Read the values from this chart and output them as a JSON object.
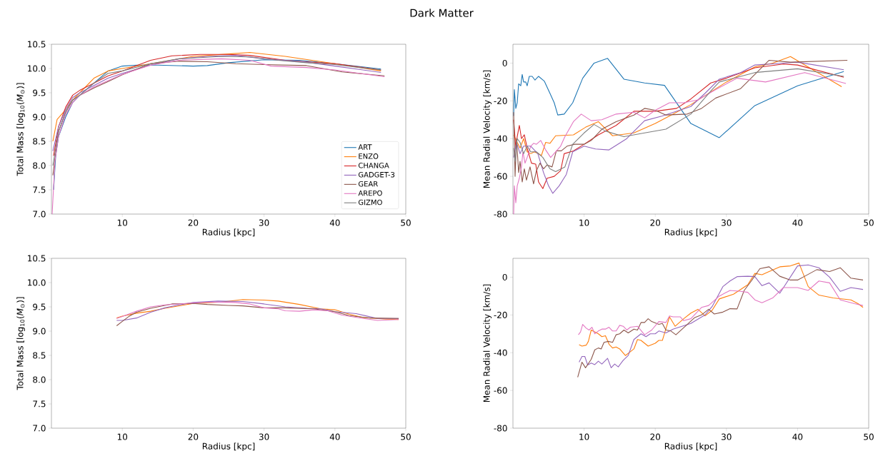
{
  "chart_data": [
    {
      "type": "line",
      "title": "Dark Matter",
      "xlabel": "Radius [kpc]",
      "ylabel": "Total Mass [log$_{10}$(*M*$_{⊙}$)]",
      "xlim": [
        0,
        50
      ],
      "ylim": [
        7,
        10.5
      ],
      "xticks": [
        10,
        20,
        30,
        40,
        50
      ],
      "yticks": [
        {
          "value": 7,
          "label": "7.0"
        },
        {
          "value": 7.5,
          "label": "7.5"
        },
        {
          "value": 8,
          "label": "8.0"
        },
        {
          "value": 8.5,
          "label": "8.5"
        },
        {
          "value": 9,
          "label": "9.0"
        },
        {
          "value": 9.5,
          "label": "9.5"
        },
        {
          "value": 10,
          "label": "10.0"
        },
        {
          "value": 10.5,
          "label": "10.5"
        }
      ],
      "legend": "bottom right",
      "series": [
        {
          "name": "ART",
          "color": "#1f77b4",
          "x": [
            0.3,
            0.6,
            1,
            2,
            3,
            4,
            6,
            8,
            10,
            12,
            15,
            20,
            22,
            25,
            30,
            35,
            40,
            46.5
          ],
          "values": [
            7.5,
            8.2,
            8.6,
            9.0,
            9.3,
            9.45,
            9.7,
            9.95,
            10.05,
            10.07,
            10.07,
            10.05,
            10.06,
            10.12,
            10.18,
            10.17,
            10.1,
            9.99
          ]
        },
        {
          "name": "ENZO",
          "color": "#ff7f0e",
          "x": [
            0.2,
            0.8,
            2,
            3,
            4,
            6,
            8,
            10,
            14,
            20,
            25,
            28,
            33,
            40,
            46.5
          ],
          "values": [
            8.5,
            8.95,
            9.15,
            9.35,
            9.5,
            9.8,
            9.95,
            10.0,
            10.1,
            10.25,
            10.3,
            10.33,
            10.25,
            10.1,
            9.95
          ]
        },
        {
          "name": "CHANGA",
          "color": "#d62728",
          "x": [
            0.3,
            1,
            2,
            3,
            4,
            6,
            8,
            10,
            14,
            17,
            21,
            25,
            28,
            33,
            40,
            46.5
          ],
          "values": [
            8.2,
            8.8,
            9.2,
            9.45,
            9.55,
            9.7,
            9.85,
            9.95,
            10.17,
            10.26,
            10.29,
            10.29,
            10.27,
            10.17,
            10.1,
            9.97
          ]
        },
        {
          "name": "GADGET-3",
          "color": "#9467bd",
          "x": [
            0.2,
            1,
            2,
            3,
            4,
            6,
            8,
            10,
            14,
            18,
            22,
            26,
            30,
            36,
            40,
            46.5
          ],
          "values": [
            8.3,
            8.8,
            9.15,
            9.4,
            9.5,
            9.65,
            9.8,
            9.9,
            10.07,
            10.2,
            10.25,
            10.27,
            10.2,
            10.13,
            10.05,
            9.92
          ]
        },
        {
          "name": "GEAR",
          "color": "#8c564b",
          "x": [
            0.2,
            1,
            2,
            3,
            4,
            6,
            8,
            10,
            14,
            18,
            22,
            26,
            30,
            36,
            41,
            47
          ],
          "values": [
            7.8,
            8.7,
            9.1,
            9.35,
            9.45,
            9.6,
            9.73,
            9.87,
            10.1,
            10.15,
            10.14,
            10.1,
            10.08,
            10.06,
            9.93,
            9.85
          ]
        },
        {
          "name": "AREPO",
          "color": "#e377c2",
          "x": [
            0.1,
            0.5,
            1,
            2,
            3,
            4,
            6,
            8,
            10,
            14,
            18,
            24,
            28,
            31,
            36,
            40,
            47
          ],
          "values": [
            7.0,
            8.1,
            8.6,
            9.05,
            9.3,
            9.45,
            9.62,
            9.75,
            9.88,
            10.07,
            10.17,
            10.2,
            10.17,
            10.05,
            10.02,
            9.97,
            9.83
          ]
        },
        {
          "name": "GIZMO",
          "color": "#7f7f7f",
          "x": [
            0.2,
            1,
            2,
            3,
            4,
            6,
            8,
            10,
            14,
            18,
            24,
            28,
            32,
            36,
            40,
            46.5
          ],
          "values": [
            8.0,
            8.7,
            9.1,
            9.35,
            9.45,
            9.7,
            9.9,
            9.95,
            10.1,
            10.2,
            10.25,
            10.24,
            10.17,
            10.12,
            10.08,
            9.97
          ]
        }
      ]
    },
    {
      "type": "line",
      "xlabel": "Radius [kpc]",
      "ylabel": "Mean Radial Velocity [km/s]",
      "xlim": [
        0,
        50
      ],
      "ylim": [
        -80,
        10
      ],
      "xticks": [
        10,
        20,
        30,
        40,
        50
      ],
      "yticks": [
        -80,
        -60,
        -40,
        -20,
        0
      ],
      "series": [
        {
          "color": "#1f77b4",
          "x": [
            0.1,
            0.2,
            0.4,
            0.6,
            0.8,
            1.1,
            1.3,
            1.5,
            1.8,
            2.0,
            2.3,
            2.7,
            3.1,
            3.6,
            4.4,
            5.2,
            5.8,
            6.3,
            7.2,
            8.4,
            9.8,
            11.4,
            13.3,
            15.6,
            18.5,
            21.3,
            25,
            29,
            34,
            40,
            46.5
          ],
          "values": [
            -28,
            -14,
            -24,
            -21,
            -11,
            -12,
            -6,
            -10,
            -10,
            -12,
            -7,
            -7,
            -9,
            -7,
            -9.5,
            -16,
            -21,
            -27.5,
            -27,
            -21,
            -8,
            0,
            2.5,
            -8.5,
            -10.5,
            -11.8,
            -32,
            -39.5,
            -22.5,
            -12,
            -4.5
          ]
        },
        {
          "color": "#ff7f0e",
          "x": [
            0.1,
            0.6,
            1,
            1.5,
            2,
            2.5,
            3,
            3.6,
            4.0,
            4.6,
            5.2,
            6,
            7,
            8.5,
            10.2,
            12,
            14,
            17,
            20,
            22,
            25,
            30,
            34,
            36.5,
            39,
            41,
            46.2
          ],
          "values": [
            -38,
            -42,
            -45,
            -40,
            -47,
            -48,
            -47,
            -48,
            -49,
            -42,
            -42.5,
            -38.5,
            -38.3,
            -38,
            -34,
            -31,
            -38.5,
            -37,
            -32,
            -28,
            -22,
            -10,
            -2,
            0,
            3.5,
            -1,
            -12.5
          ]
        },
        {
          "color": "#d62728",
          "x": [
            0.1,
            0.4,
            0.6,
            0.9,
            1.2,
            1.6,
            2.0,
            2.6,
            3.2,
            3.6,
            4.2,
            4.8,
            5.8,
            6.7,
            7.2,
            8.5,
            10,
            12,
            14.5,
            17,
            20,
            23,
            25,
            27.8,
            30,
            34,
            38,
            40,
            46.5
          ],
          "values": [
            -30,
            -45,
            -39,
            -33,
            -40,
            -38,
            -45,
            -53,
            -53.5,
            -63,
            -66.5,
            -61,
            -60,
            -57,
            -48,
            -46.5,
            -43,
            -38,
            -33,
            -25.5,
            -25.5,
            -24,
            -19,
            -10.5,
            -8,
            -2.5,
            -0.5,
            -1,
            -7.5
          ]
        },
        {
          "color": "#9467bd",
          "x": [
            0.1,
            0.5,
            1,
            1.5,
            2.5,
            3.5,
            4.3,
            5,
            5.6,
            6.5,
            7.5,
            8.4,
            10,
            11.6,
            13.5,
            16,
            18.5,
            21,
            25,
            27,
            29,
            32,
            34,
            38,
            40,
            46.5
          ],
          "values": [
            -50,
            -42,
            -48,
            -44,
            -44,
            -48,
            -58,
            -65,
            -69,
            -65,
            -59,
            -47,
            -44,
            -45.5,
            -46,
            -40,
            -30.5,
            -28,
            -23,
            -16,
            -8.5,
            -5,
            -1,
            0,
            0.5,
            -3.5
          ]
        },
        {
          "color": "#8c564b",
          "x": [
            0.1,
            0.3,
            0.5,
            0.8,
            1.0,
            1.3,
            1.6,
            1.9,
            2.4,
            2.9,
            3.3,
            3.8,
            4.3,
            4.8,
            5.5,
            6.1,
            6.8,
            7.6,
            8.7,
            10,
            11,
            12.5,
            14.5,
            17,
            18.5,
            20,
            21.5,
            24.5,
            26.5,
            28.5,
            32,
            36,
            39,
            47
          ],
          "values": [
            -26,
            -60,
            -40,
            -58,
            -52,
            -63,
            -56,
            -62,
            -55,
            -64,
            -57,
            -53,
            -56,
            -54,
            -55,
            -46.5,
            -46.5,
            -44,
            -43,
            -43,
            -41,
            -35,
            -31,
            -27.5,
            -24,
            -25,
            -27.5,
            -27,
            -24,
            -18.5,
            -13.5,
            1.5,
            0.5,
            1.5
          ]
        },
        {
          "color": "#e377c2",
          "x": [
            0.1,
            0.2,
            0.4,
            0.6,
            0.9,
            1.2,
            1.4,
            1.7,
            2.0,
            2.5,
            2.9,
            3.3,
            3.9,
            4.6,
            5.3,
            6.7,
            7.3,
            8.5,
            9.6,
            11,
            12.5,
            14.5,
            17,
            18.5,
            20,
            22,
            24,
            26,
            28.5,
            31.5,
            35.5,
            41,
            46.8
          ],
          "values": [
            -80,
            -65,
            -74,
            -65,
            -61,
            -55,
            -47,
            -53,
            -50,
            -44,
            -42.5,
            -43,
            -41,
            -46,
            -50,
            -44,
            -39,
            -31,
            -27,
            -30.5,
            -30,
            -27,
            -26,
            -29,
            -25,
            -21,
            -21,
            -19.5,
            -14,
            -8,
            -10,
            -5,
            -10.8
          ]
        },
        {
          "color": "#7f7f7f",
          "x": [
            0.1,
            0.3,
            0.6,
            1,
            1.5,
            2,
            2.5,
            3.3,
            4.2,
            5.2,
            6.0,
            7.3,
            8.4,
            10,
            11.4,
            13,
            15.6,
            18.5,
            21.5,
            25,
            28,
            29,
            32,
            34,
            40,
            46.5
          ],
          "values": [
            -45,
            -52,
            -40,
            -42,
            -48,
            -44,
            -47,
            -47,
            -50,
            -56,
            -57.5,
            -55,
            -43,
            -37,
            -32.5,
            -36,
            -39,
            -37,
            -35,
            -27,
            -14,
            -10,
            -7,
            -5,
            -3,
            -7
          ]
        }
      ]
    },
    {
      "type": "line",
      "xlabel": "Radius [kpc]",
      "ylabel": "Total Mass [log$_{10}$(*M*$_{⊙}$)]",
      "xlim": [
        0,
        50
      ],
      "ylim": [
        7,
        10.5
      ],
      "xticks": [
        10,
        20,
        30,
        40,
        50
      ],
      "yticks": [
        {
          "value": 7,
          "label": "7.0"
        },
        {
          "value": 7.5,
          "label": "7.5"
        },
        {
          "value": 8,
          "label": "8.0"
        },
        {
          "value": 8.5,
          "label": "8.5"
        },
        {
          "value": 9,
          "label": "9.0"
        },
        {
          "value": 9.5,
          "label": "9.5"
        },
        {
          "value": 10,
          "label": "10.0"
        },
        {
          "value": 10.5,
          "label": "10.5"
        }
      ],
      "series": [
        {
          "color": "#ff7f0e",
          "x": [
            9.2,
            10,
            12,
            14,
            16,
            18,
            20,
            24,
            27,
            30,
            32,
            35,
            38,
            40,
            42,
            44,
            47,
            49
          ],
          "values": [
            9.27,
            9.31,
            9.37,
            9.41,
            9.47,
            9.52,
            9.57,
            9.6,
            9.65,
            9.64,
            9.62,
            9.55,
            9.46,
            9.44,
            9.35,
            9.28,
            9.25,
            9.24
          ]
        },
        {
          "color": "#9467bd",
          "x": [
            9.2,
            10,
            12,
            14,
            16,
            18,
            20,
            23.5,
            27,
            30,
            33,
            36,
            38,
            40,
            43,
            46,
            49
          ],
          "values": [
            9.22,
            9.22,
            9.27,
            9.39,
            9.48,
            9.54,
            9.59,
            9.62,
            9.61,
            9.56,
            9.5,
            9.47,
            9.46,
            9.4,
            9.36,
            9.26,
            9.26
          ]
        },
        {
          "color": "#8c564b",
          "x": [
            9.2,
            10,
            11,
            12,
            14,
            16,
            17,
            20,
            22,
            25,
            27,
            30,
            33,
            37,
            40,
            42,
            45,
            49
          ],
          "values": [
            9.11,
            9.2,
            9.31,
            9.39,
            9.47,
            9.53,
            9.56,
            9.57,
            9.55,
            9.53,
            9.52,
            9.48,
            9.48,
            9.46,
            9.4,
            9.32,
            9.27,
            9.26
          ]
        },
        {
          "color": "#e377c2",
          "x": [
            9.2,
            10,
            12,
            14,
            16,
            18,
            20,
            23,
            26,
            28,
            30,
            32,
            33,
            35,
            37,
            39,
            41,
            44,
            46,
            49
          ],
          "values": [
            9.26,
            9.3,
            9.41,
            9.5,
            9.54,
            9.56,
            9.58,
            9.6,
            9.59,
            9.56,
            9.48,
            9.46,
            9.42,
            9.41,
            9.44,
            9.42,
            9.33,
            9.26,
            9.22,
            9.24
          ]
        }
      ]
    },
    {
      "type": "line",
      "xlabel": "Radius [kpc]",
      "ylabel": "Mean Radial Velocity [km/s]",
      "xlim": [
        0,
        50
      ],
      "ylim": [
        -80,
        10
      ],
      "xticks": [
        10,
        20,
        30,
        40,
        50
      ],
      "yticks": [
        -80,
        -60,
        -40,
        -20,
        0
      ],
      "series": [
        {
          "color": "#ff7f0e",
          "x": [
            9.3,
            9.7,
            10.3,
            10.6,
            11,
            11.5,
            12,
            12.5,
            13,
            13.5,
            14,
            14.5,
            15,
            15.8,
            16.5,
            17,
            17.5,
            18,
            18.5,
            19,
            20,
            20.5,
            21,
            22,
            22.8,
            24,
            25,
            26,
            27,
            28,
            29,
            31,
            33,
            34,
            35,
            36,
            37.5,
            39,
            40.2,
            41.5,
            43,
            45,
            47.5,
            48.5,
            49.2
          ],
          "values": [
            -35.8,
            -36.5,
            -36,
            -34,
            -28,
            -29,
            -30,
            -31.5,
            -31,
            -35.5,
            -37.5,
            -37,
            -38,
            -41.5,
            -39.5,
            -38,
            -33,
            -33.5,
            -35,
            -36.5,
            -35,
            -33.5,
            -33.5,
            -21,
            -26,
            -22,
            -19,
            -17,
            -20.5,
            -17.5,
            -11.5,
            -9,
            -4,
            2,
            1.3,
            3,
            5.5,
            6,
            7.5,
            -5,
            -9.5,
            -11,
            -12,
            -14,
            -16
          ]
        },
        {
          "color": "#9467bd",
          "x": [
            9.3,
            9.7,
            10.1,
            10.5,
            11,
            11.5,
            12,
            12.5,
            13.3,
            13.8,
            14.3,
            14.8,
            15.5,
            16.2,
            17,
            18,
            18.7,
            19.3,
            20,
            20.5,
            21.5,
            22.5,
            25,
            27,
            28,
            29.5,
            30.5,
            31.5,
            33,
            34,
            35,
            36,
            37.5,
            40,
            41.5,
            43,
            44.5,
            46,
            47.5,
            49.2
          ],
          "values": [
            -45,
            -42,
            -42,
            -46.5,
            -45.5,
            -46.3,
            -44.5,
            -46,
            -43,
            -48,
            -46,
            -47.5,
            -44,
            -41.5,
            -33,
            -30,
            -31.5,
            -30,
            -30,
            -28.5,
            -29.5,
            -27.5,
            -24.5,
            -20,
            -15.5,
            -5,
            -2,
            0.3,
            0.5,
            0.3,
            -4.5,
            -3,
            -8.5,
            6,
            6.5,
            5,
            0,
            -7.5,
            -5.5,
            -6.5
          ]
        },
        {
          "color": "#8c564b",
          "x": [
            9.1,
            9.7,
            10.2,
            11,
            11.5,
            12,
            12.4,
            12.8,
            13.4,
            14,
            14.5,
            15,
            15.6,
            16.2,
            17,
            17.5,
            18,
            18.5,
            19,
            19.5,
            20.5,
            21,
            21.5,
            22.2,
            22.9,
            24.5,
            25.5,
            26.5,
            27.5,
            28.3,
            29.5,
            30.5,
            31.5,
            32.5,
            33.5,
            34.7,
            36,
            37.5,
            39,
            40,
            41,
            42.7,
            44.5,
            46,
            47.5,
            49.2
          ],
          "values": [
            -53,
            -45,
            -48,
            -43.5,
            -38.5,
            -37.5,
            -38,
            -34.5,
            -34,
            -34.5,
            -30.5,
            -30,
            -28,
            -29.5,
            -27.5,
            -28,
            -24,
            -24,
            -22,
            -23.5,
            -25,
            -24.5,
            -28,
            -28.5,
            -30.5,
            -25,
            -21.5,
            -20,
            -17,
            -19.5,
            -18.5,
            -16.7,
            -16.8,
            -7,
            -2,
            4.5,
            5.5,
            0.5,
            -1.5,
            -1.5,
            0.5,
            4,
            3,
            5,
            -0.5,
            -1.5
          ]
        },
        {
          "color": "#e377c2",
          "x": [
            9.2,
            9.5,
            9.8,
            10.3,
            10.7,
            11.1,
            11.5,
            12,
            12.5,
            13,
            13.5,
            14,
            14.5,
            15,
            15.5,
            16,
            16.5,
            17.5,
            18.5,
            19.5,
            20.5,
            21.5,
            22,
            22.5,
            23.5,
            24,
            25,
            26,
            26.5,
            27.5,
            29,
            30.5,
            32,
            33,
            34,
            35,
            36.5,
            38,
            40,
            41.5,
            43,
            44.5,
            46,
            48,
            49.2
          ],
          "values": [
            -30.5,
            -29,
            -25,
            -27,
            -28,
            -26.5,
            -30,
            -28.5,
            -27.5,
            -27.5,
            -26.5,
            -28.5,
            -28.5,
            -25.5,
            -26,
            -28,
            -26.5,
            -26,
            -30.5,
            -28,
            -23.5,
            -24,
            -20.5,
            -21,
            -21,
            -23,
            -22,
            -18,
            -16,
            -15,
            -10,
            -7,
            -7.5,
            -8,
            -12,
            -13.5,
            -11,
            -5.5,
            -5.5,
            -7,
            -2,
            -3,
            -12,
            -14,
            -15
          ]
        }
      ]
    }
  ]
}
